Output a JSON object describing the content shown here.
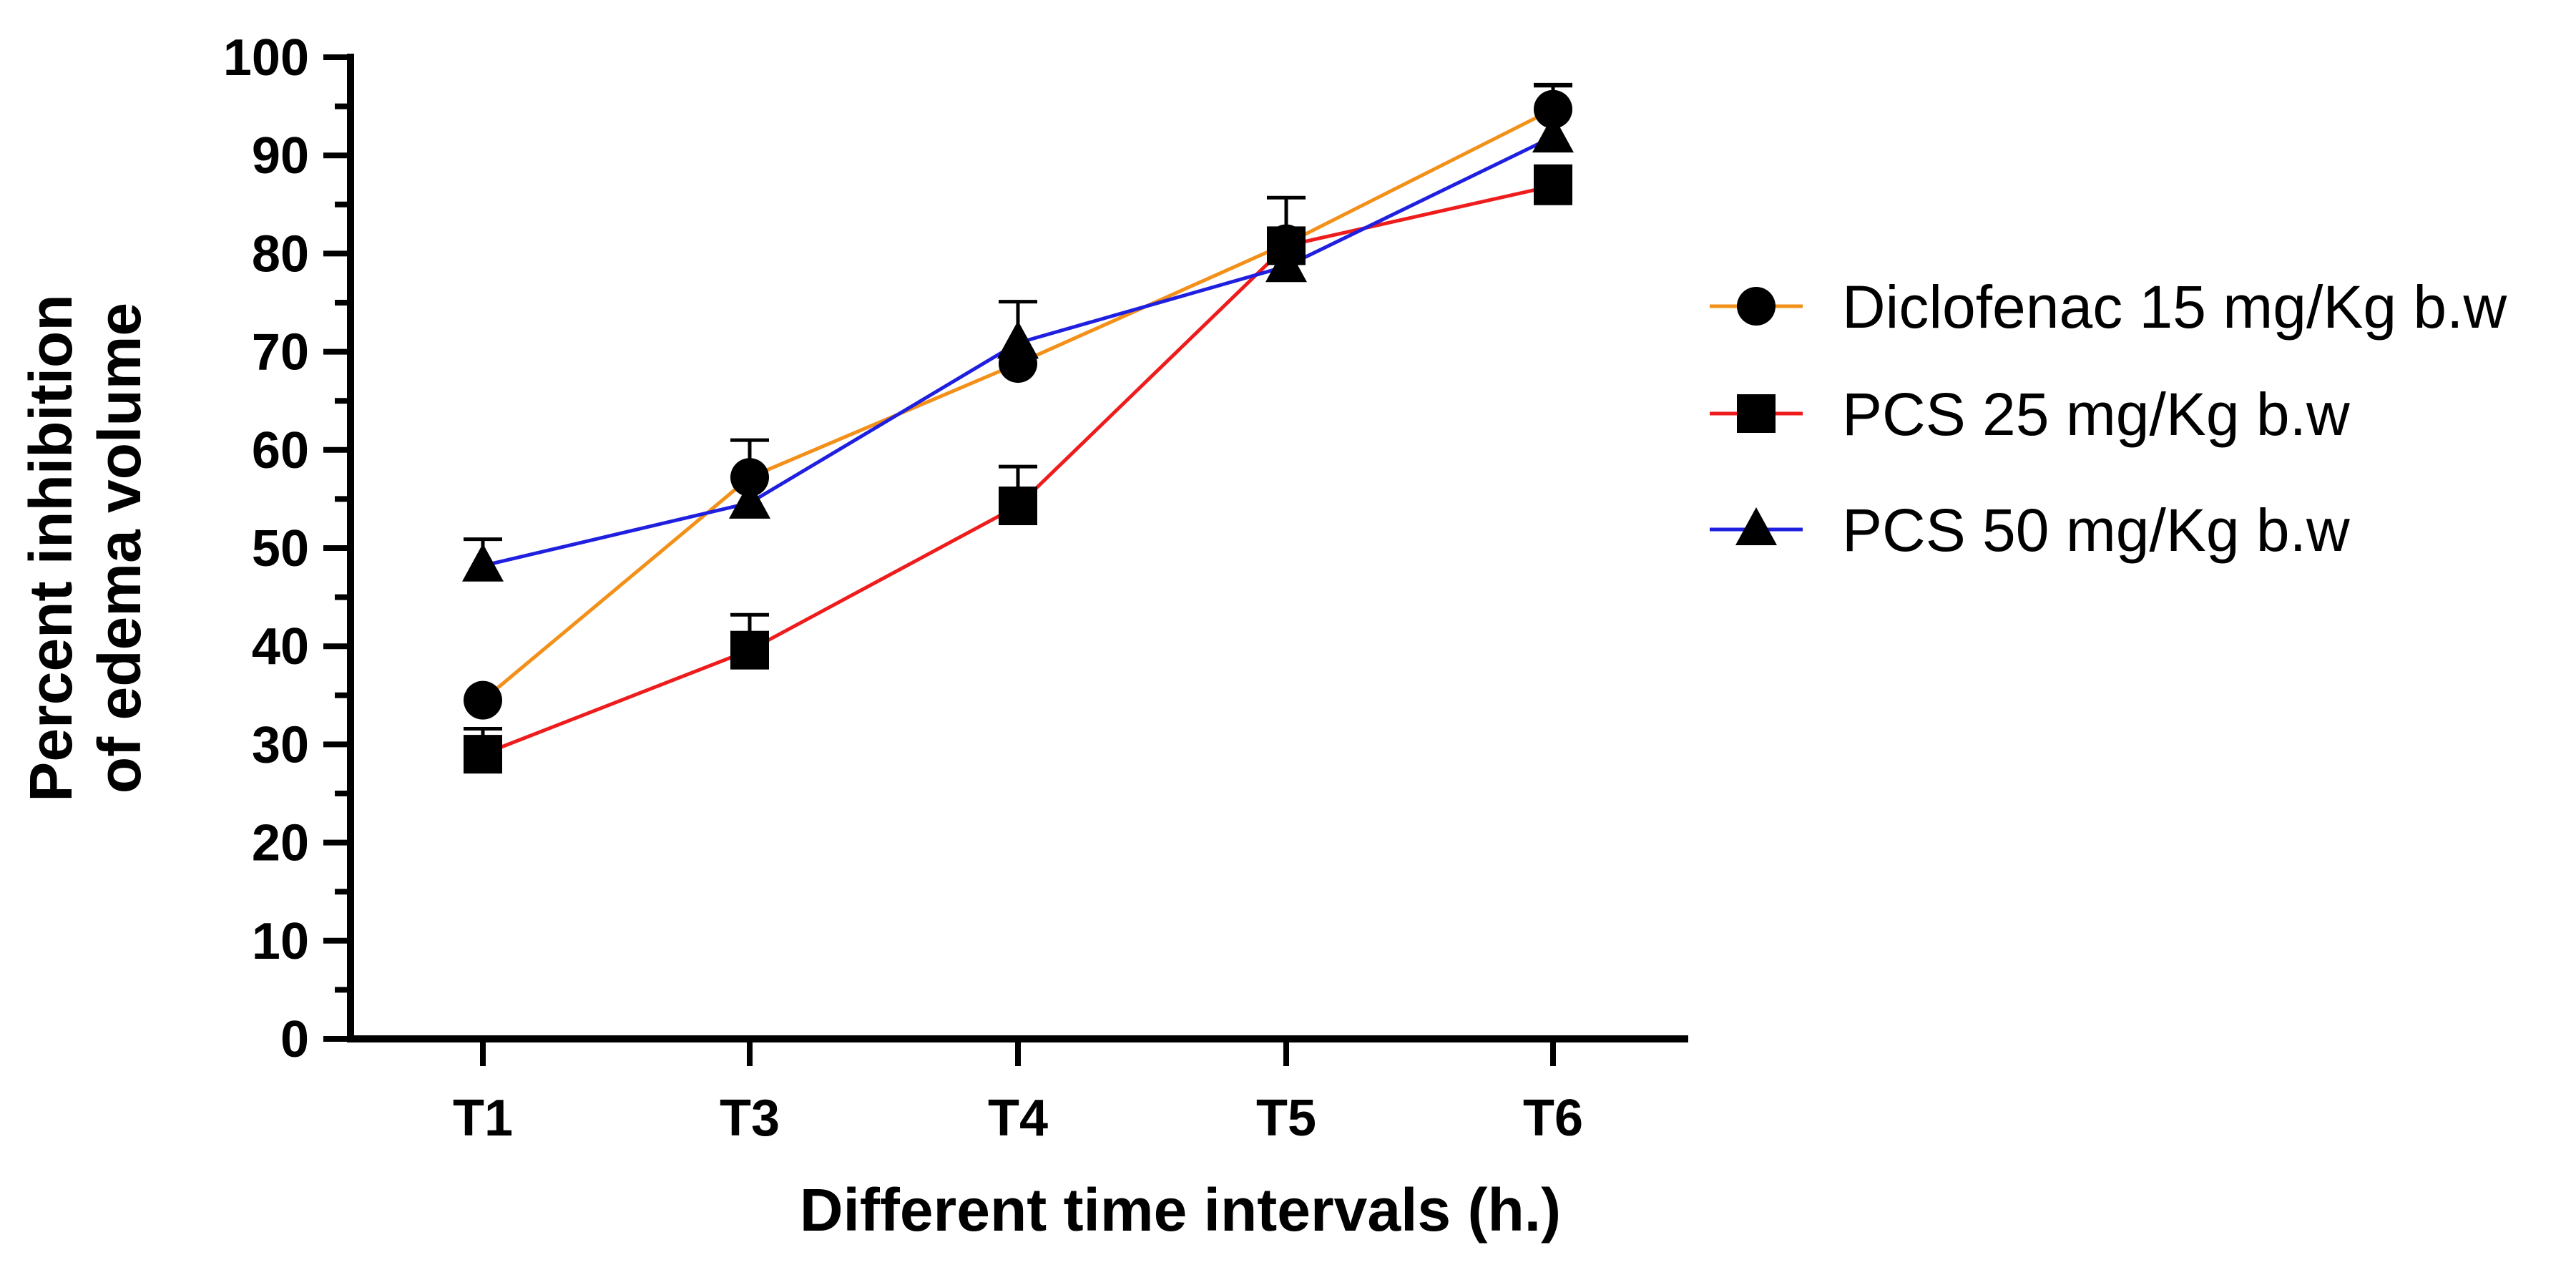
{
  "chart_data": {
    "type": "line",
    "title": "",
    "xlabel": "Different time intervals (h.)",
    "ylabel_line1": "Percent inhibition",
    "ylabel_line2": "of edema volume",
    "ylim": [
      0,
      100
    ],
    "yticks": [
      0,
      10,
      20,
      30,
      40,
      50,
      60,
      70,
      80,
      90,
      100
    ],
    "categories": [
      "T1",
      "T3",
      "T4",
      "T5",
      "T6"
    ],
    "grid": false,
    "legend_position": "right",
    "series": [
      {
        "name": "Diclofenac 15 mg/Kg b.w",
        "color": "#f39019",
        "marker": "circle",
        "values": [
          34.5,
          57.2,
          68.8,
          81.0,
          94.7
        ],
        "errors": [
          0,
          3.8,
          0,
          0,
          2.5
        ]
      },
      {
        "name": "PCS 25 mg/Kg b.w",
        "color": "#ee1c1c",
        "marker": "square",
        "values": [
          29.0,
          39.6,
          54.3,
          80.8,
          86.9
        ],
        "errors": [
          2.6,
          3.6,
          4.0,
          0,
          2.0
        ]
      },
      {
        "name": "PCS 50 mg/Kg b.w",
        "color": "#1f1fe0",
        "marker": "triangle",
        "values": [
          48.2,
          54.6,
          70.9,
          78.7,
          91.9
        ],
        "errors": [
          2.7,
          0,
          4.2,
          7.0,
          5.2
        ]
      }
    ]
  }
}
